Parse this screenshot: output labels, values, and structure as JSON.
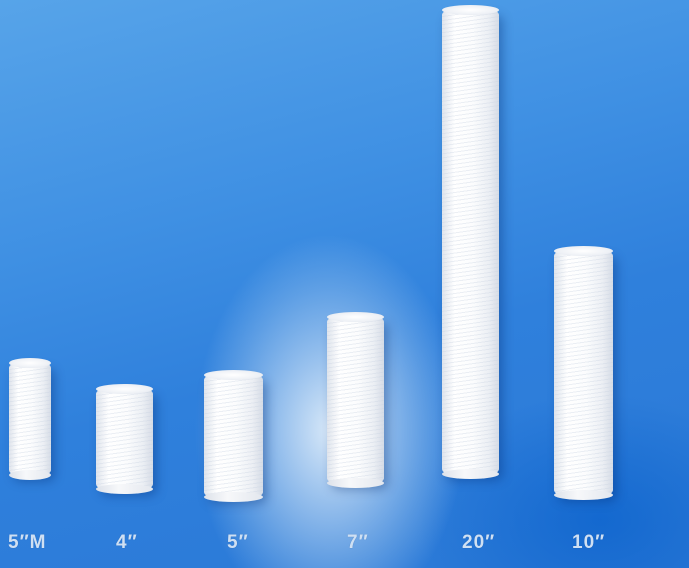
{
  "image": {
    "subject": "white string-wound filter cartridges of different lengths on a blue backdrop",
    "background_color": "#3a8ae2",
    "cartridge_color": "#f7f8fa",
    "label_color": "#cfe0f3"
  },
  "cartridges": [
    {
      "label": "5″M"
    },
    {
      "label": "4″"
    },
    {
      "label": "5″"
    },
    {
      "label": "7″"
    },
    {
      "label": "20″"
    },
    {
      "label": "10″"
    }
  ]
}
